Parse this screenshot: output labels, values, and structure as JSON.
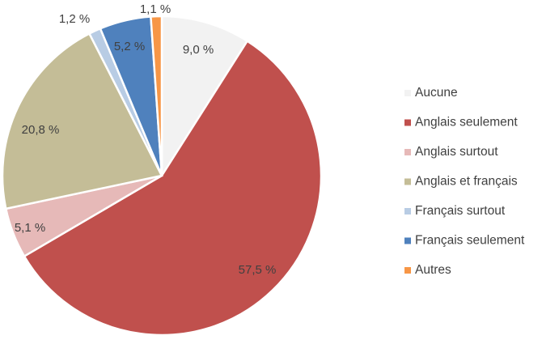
{
  "chart_data": {
    "type": "pie",
    "title": "",
    "categories": [
      "Aucune",
      "Anglais seulement",
      "Anglais surtout",
      "Anglais et français",
      "Français surtout",
      "Français seulement",
      "Autres"
    ],
    "values": [
      9.0,
      57.5,
      5.1,
      20.8,
      1.2,
      5.2,
      1.1
    ],
    "value_labels": [
      "9,0 %",
      "57,5 %",
      "5,1 %",
      "20,8 %",
      "1,2 %",
      "5,2 %",
      "1,1 %"
    ],
    "colors": [
      "#f2f2f2",
      "#c0504d",
      "#e6b9b8",
      "#c4bd97",
      "#b8cce4",
      "#4f81bd",
      "#f79646"
    ],
    "legend_position": "right",
    "start_angle_deg": 0,
    "direction": "clockwise"
  }
}
